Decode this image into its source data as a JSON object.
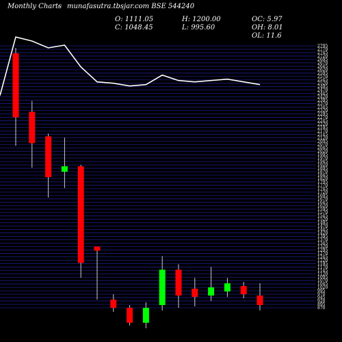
{
  "header": {
    "site": "Monthly Charts",
    "source": "munafasutra.tbsjar.com BSE 544240",
    "source_prefix": "-",
    "open": "O: 1111.05",
    "close": "C: 1048.45",
    "high": "H: 1200.00",
    "low": "L: 995.60",
    "oc": "OC: 5.97",
    "oh": "OH: 8.01",
    "ol": "OL: 11.6"
  },
  "colors": {
    "background": "#000000",
    "grid": "#1c1c8c",
    "up": "#00ff00",
    "down": "#ff0000",
    "wick": "#cccccc",
    "overlay_line": "#ffffff",
    "text": "#ffffff"
  },
  "chart_data": {
    "type": "candlestick",
    "title": "",
    "ylim": [
      870,
      2800
    ],
    "y_tick_step": 25,
    "y_tick_labels_start": 870,
    "y_tick_labels_end": 2798,
    "candles": [
      {
        "open": 2740,
        "close": 2270,
        "high": 2780,
        "low": 2060,
        "dir": "down"
      },
      {
        "open": 2310,
        "close": 2080,
        "high": 2390,
        "low": 1900,
        "dir": "down"
      },
      {
        "open": 2130,
        "close": 1830,
        "high": 2150,
        "low": 1680,
        "dir": "down"
      },
      {
        "open": 1910,
        "close": 1870,
        "high": 2120,
        "low": 1750,
        "dir": "up"
      },
      {
        "open": 1910,
        "close": 1200,
        "high": 1920,
        "low": 1090,
        "dir": "down"
      },
      {
        "open": 1290,
        "close": 1320,
        "high": 1320,
        "low": 930,
        "dir": "down"
      },
      {
        "open": 930,
        "close": 870,
        "high": 970,
        "low": 840,
        "dir": "down"
      },
      {
        "open": 870,
        "close": 760,
        "high": 890,
        "low": 740,
        "dir": "down"
      },
      {
        "open": 760,
        "close": 870,
        "high": 910,
        "low": 720,
        "dir": "up"
      },
      {
        "open": 890,
        "close": 1150,
        "high": 1250,
        "low": 850,
        "dir": "up"
      },
      {
        "open": 1150,
        "close": 960,
        "high": 1190,
        "low": 870,
        "dir": "down"
      },
      {
        "open": 1010,
        "close": 950,
        "high": 1090,
        "low": 880,
        "dir": "down"
      },
      {
        "open": 960,
        "close": 1020,
        "high": 1170,
        "low": 920,
        "dir": "up"
      },
      {
        "open": 990,
        "close": 1050,
        "high": 1090,
        "low": 950,
        "dir": "up"
      },
      {
        "open": 1030,
        "close": 970,
        "high": 1060,
        "low": 940,
        "dir": "down"
      },
      {
        "open": 960,
        "close": 890,
        "high": 1050,
        "low": 850,
        "dir": "down"
      }
    ],
    "overlay_line": [
      2430,
      2860,
      2830,
      2780,
      2800,
      2640,
      2530,
      2520,
      2500,
      2510,
      2580,
      2540,
      2530,
      2540,
      2550,
      2530,
      2510
    ]
  }
}
